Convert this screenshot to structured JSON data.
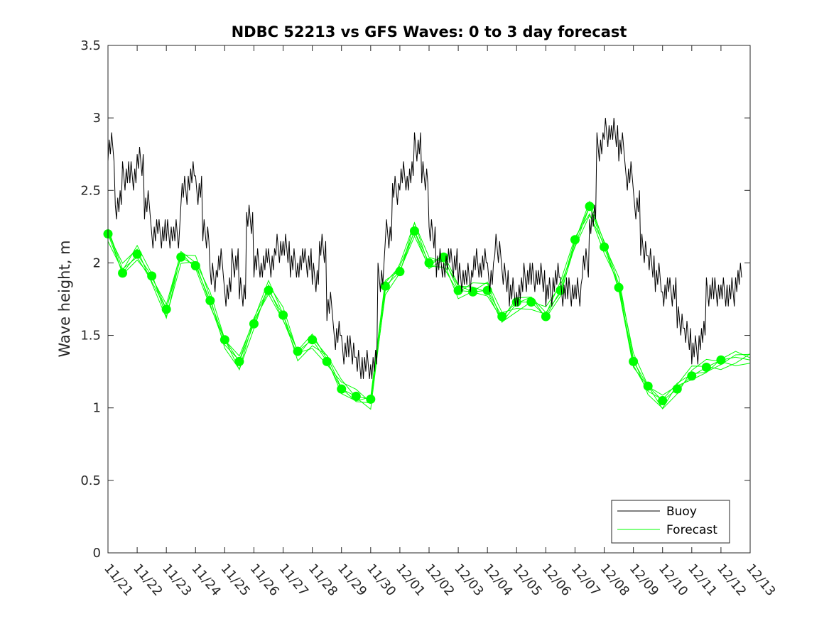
{
  "chart_data": {
    "type": "line",
    "title": "NDBC 52213 vs GFS Waves: 0 to 3 day forecast",
    "xlabel": "",
    "ylabel": "Wave height, m",
    "ylim": [
      0,
      3.5
    ],
    "yticks": [
      0,
      0.5,
      1,
      1.5,
      2,
      2.5,
      3,
      3.5
    ],
    "ytick_labels": [
      "0",
      "0.5",
      "1",
      "1.5",
      "2",
      "2.5",
      "3",
      "3.5"
    ],
    "xlim": [
      0,
      22
    ],
    "xtick_labels": [
      "11/21",
      "11/22",
      "11/23",
      "11/24",
      "11/25",
      "11/26",
      "11/27",
      "11/28",
      "11/29",
      "11/30",
      "12/01",
      "12/02",
      "12/03",
      "12/04",
      "12/05",
      "12/06",
      "12/07",
      "12/08",
      "12/09",
      "12/10",
      "12/11",
      "12/12",
      "12/13"
    ],
    "legend": {
      "position": "bottom-right",
      "entries": [
        "Buoy",
        "Forecast"
      ]
    },
    "colors": {
      "buoy": "#000000",
      "forecast": "#00ff00",
      "axes": "#262626"
    },
    "series": [
      {
        "name": "Buoy",
        "x": [
          0,
          0.25,
          0.5,
          0.75,
          1.0,
          1.25,
          1.5,
          1.75,
          2.0,
          2.25,
          2.5,
          2.75,
          3.0,
          3.25,
          3.5,
          3.75,
          4.0,
          4.25,
          4.5,
          4.75,
          5.0,
          5.25,
          5.5,
          5.75,
          6.0,
          6.25,
          6.5,
          6.75,
          7.0,
          7.25,
          7.5,
          7.75,
          8.0,
          8.25,
          8.5,
          8.75,
          9.0,
          9.25,
          9.5,
          9.75,
          10.0,
          10.25,
          10.5,
          10.75,
          11.0,
          11.25,
          11.5,
          11.75,
          12.0,
          12.25,
          12.5,
          12.75,
          13.0,
          13.25,
          13.5,
          13.75,
          14.0,
          14.25,
          14.5,
          14.75,
          15.0,
          15.25,
          15.5,
          15.75,
          16.0,
          16.25,
          16.5,
          16.75,
          17.0,
          17.25,
          17.5,
          17.75,
          18.0,
          18.25,
          18.5,
          18.75,
          19.0,
          19.25,
          19.5,
          19.75,
          20.0,
          20.25,
          20.5,
          20.75,
          21.0,
          21.25,
          21.5
        ],
        "y": [
          2.8,
          2.4,
          2.6,
          2.6,
          2.7,
          2.4,
          2.2,
          2.2,
          2.2,
          2.2,
          2.5,
          2.6,
          2.5,
          2.2,
          1.9,
          2.0,
          1.8,
          2.0,
          1.8,
          2.3,
          2.0,
          2.0,
          2.0,
          2.1,
          2.1,
          2.0,
          2.0,
          2.0,
          1.9,
          2.1,
          1.7,
          1.5,
          1.4,
          1.4,
          1.3,
          1.3,
          1.3,
          1.9,
          2.2,
          2.5,
          2.6,
          2.6,
          2.8,
          2.6,
          2.2,
          2.0,
          2.0,
          2.0,
          1.9,
          1.9,
          2.0,
          2.0,
          1.9,
          2.1,
          1.9,
          1.8,
          1.8,
          1.9,
          1.9,
          1.9,
          1.8,
          1.9,
          1.8,
          1.8,
          1.8,
          2.0,
          2.3,
          2.8,
          2.9,
          2.9,
          2.8,
          2.6,
          2.4,
          2.1,
          2.0,
          1.9,
          1.8,
          1.8,
          1.6,
          1.5,
          1.4,
          1.5,
          1.8,
          1.8,
          1.8,
          1.8,
          1.9
        ]
      },
      {
        "name": "Forecast",
        "x": [
          0,
          0.5,
          1.0,
          1.5,
          2.0,
          2.5,
          3.0,
          3.5,
          4.0,
          4.5,
          5.0,
          5.5,
          6.0,
          6.5,
          7.0,
          7.5,
          8.0,
          8.5,
          9.0,
          9.5,
          10.0,
          10.5,
          11.0,
          11.5,
          12.0,
          12.5,
          13.0,
          13.5,
          14.0,
          14.5,
          15.0,
          15.5,
          16.0,
          16.5,
          17.0,
          17.5,
          18.0,
          18.5,
          19.0,
          19.5,
          20.0,
          20.5,
          21.0,
          21.5,
          22.0
        ],
        "y": [
          2.2,
          1.93,
          2.06,
          1.91,
          1.68,
          2.04,
          1.98,
          1.74,
          1.47,
          1.32,
          1.58,
          1.81,
          1.64,
          1.39,
          1.47,
          1.32,
          1.13,
          1.08,
          1.06,
          1.84,
          1.94,
          2.22,
          2.0,
          2.04,
          1.81,
          1.8,
          1.81,
          1.63,
          1.73,
          1.73,
          1.63,
          1.81,
          2.16,
          2.39,
          2.11,
          1.83,
          1.32,
          1.15,
          1.05,
          1.13,
          1.22,
          1.28,
          1.33,
          1.35,
          1.33
        ]
      }
    ]
  }
}
